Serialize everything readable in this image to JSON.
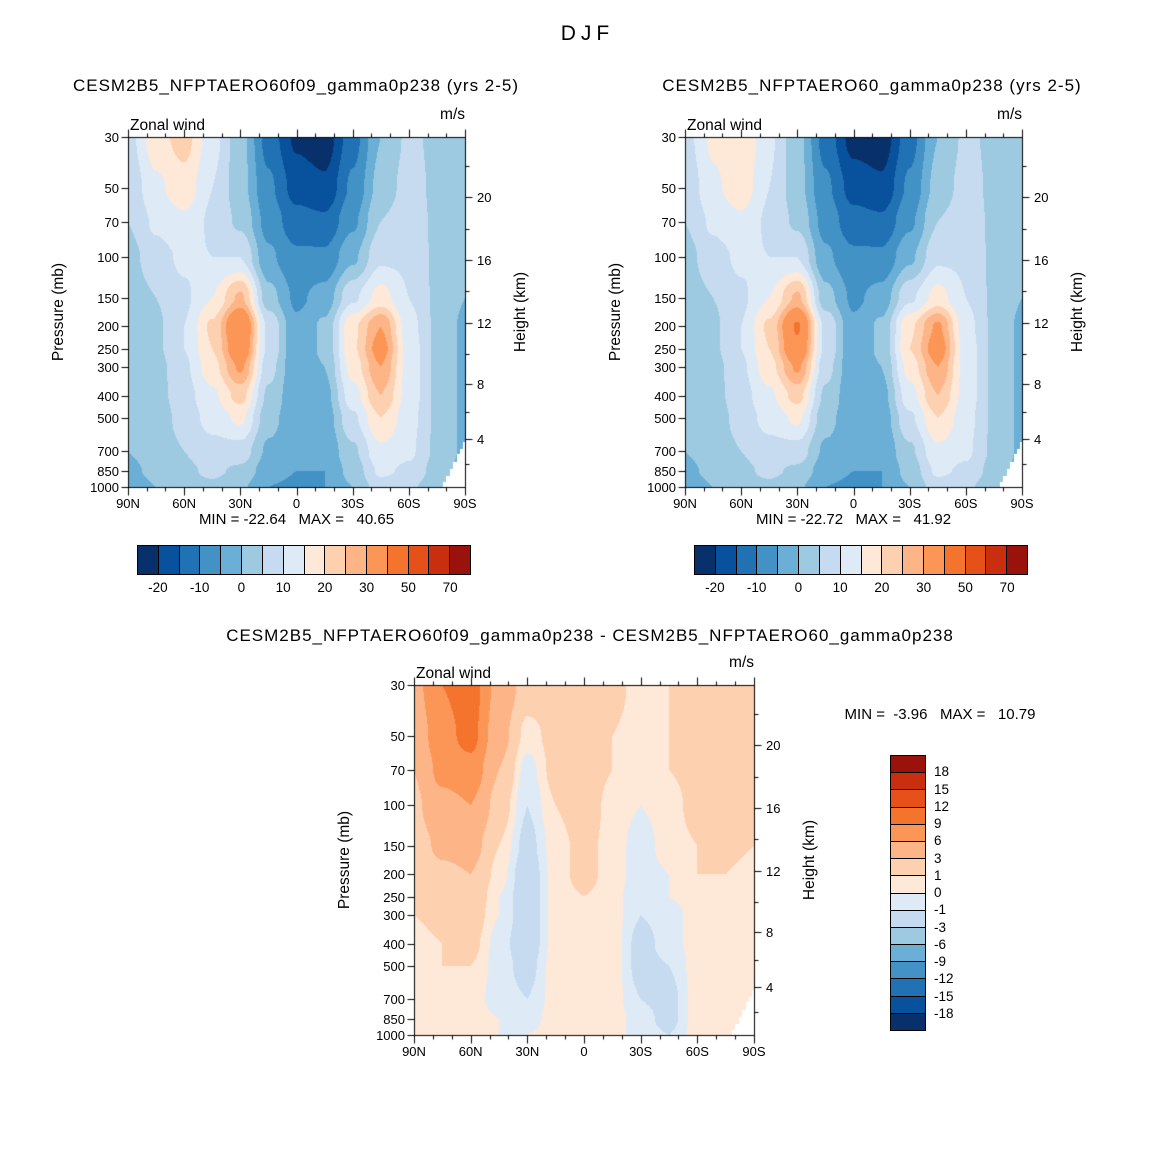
{
  "title": "DJF",
  "panels": [
    {
      "title": "CESM2B5_NFPTAERO60f09_gamma0p238 (yrs 2-5)",
      "field_label": "Zonal wind",
      "units": "m/s",
      "stats": "MIN = -22.64   MAX =   40.65"
    },
    {
      "title": "CESM2B5_NFPTAERO60_gamma0p238 (yrs 2-5)",
      "field_label": "Zonal wind",
      "units": "m/s",
      "stats": "MIN = -22.72   MAX =   41.92"
    },
    {
      "title": "CESM2B5_NFPTAERO60f09_gamma0p238 - CESM2B5_NFPTAERO60_gamma0p238",
      "field_label": "Zonal wind",
      "units": "m/s",
      "stats": "MIN =  -3.96   MAX =   10.79"
    }
  ],
  "axes": {
    "pressure_label": "Pressure (mb)",
    "height_label": "Height (km)",
    "pressure_ticks": [
      "30",
      "50",
      "70",
      "100",
      "150",
      "200",
      "250",
      "300",
      "400",
      "500",
      "700",
      "850",
      "1000"
    ],
    "height_ticks": [
      "20",
      "16",
      "12",
      "8",
      "4"
    ],
    "lat_ticks": [
      "90N",
      "60N",
      "30N",
      "0",
      "30S",
      "60S",
      "90S"
    ],
    "lat_values": [
      90,
      60,
      30,
      0,
      -30,
      -60,
      -90
    ]
  },
  "colorbars": {
    "palette": [
      "#08306b",
      "#08519c",
      "#2171b5",
      "#4292c6",
      "#6baed6",
      "#9ecae1",
      "#c6dbef",
      "#deebf7",
      "#fee8d8",
      "#fdd0b0",
      "#fdb588",
      "#fc9656",
      "#f4742e",
      "#e65019",
      "#c92e0e",
      "#99120b"
    ],
    "main_labels": [
      "-20",
      "-10",
      "0",
      "10",
      "20",
      "30",
      "50",
      "70"
    ],
    "main_label_boundaries": [
      1,
      3,
      5,
      7,
      9,
      11,
      13,
      15
    ],
    "diff_labels": [
      "18",
      "15",
      "12",
      "9",
      "6",
      "3",
      "1",
      "0",
      "-1",
      "-3",
      "-6",
      "-9",
      "-12",
      "-15",
      "-18"
    ]
  },
  "surface_mask": [
    [
      -90,
      640
    ],
    [
      -86,
      730
    ],
    [
      -82,
      860
    ],
    [
      -79,
      960
    ],
    [
      -76,
      2000
    ]
  ],
  "chart_data": [
    {
      "type": "heatmap",
      "title": "CESM2B5_NFPTAERO60f09_gamma0p238 (yrs 2-5)",
      "variable": "Zonal wind",
      "units": "m/s",
      "ylabel": "Pressure (mb)",
      "y2label": "Height (km)",
      "min": -22.64,
      "max": 40.65,
      "levels": [
        -20,
        -15,
        -10,
        -5,
        0,
        5,
        10,
        15,
        20,
        25,
        30,
        40,
        50,
        60,
        70
      ],
      "lats": [
        90,
        75,
        60,
        45,
        30,
        15,
        0,
        -15,
        -30,
        -45,
        -60,
        -75,
        -90
      ],
      "pressures": [
        30,
        50,
        70,
        100,
        150,
        200,
        250,
        300,
        400,
        500,
        700,
        850,
        1000
      ],
      "values": [
        [
          8,
          18,
          22,
          12,
          2,
          -12,
          -21,
          -23,
          -12,
          0,
          6,
          4,
          0
        ],
        [
          6,
          14,
          18,
          10,
          2,
          -9,
          -17,
          -19,
          -9,
          2,
          7,
          4,
          0
        ],
        [
          5,
          11,
          14,
          9,
          4,
          -7,
          -13,
          -14,
          -6,
          5,
          8,
          4,
          0
        ],
        [
          3,
          8,
          11,
          10,
          10,
          -4,
          -9,
          -9,
          -1,
          9,
          9,
          4,
          0
        ],
        [
          2,
          5,
          9,
          15,
          26,
          2,
          -6,
          -3,
          9,
          17,
          10,
          4,
          0
        ],
        [
          1,
          4,
          10,
          21,
          40,
          9,
          -4,
          1,
          19,
          30,
          12,
          4,
          -1
        ],
        [
          1,
          4,
          10,
          20,
          37,
          9,
          -4,
          1,
          19,
          33,
          13,
          4,
          -1
        ],
        [
          1,
          3,
          9,
          18,
          31,
          7,
          -4,
          0,
          17,
          30,
          13,
          4,
          -1
        ],
        [
          0,
          3,
          8,
          14,
          22,
          4,
          -4,
          -2,
          13,
          25,
          13,
          4,
          -1
        ],
        [
          0,
          2,
          7,
          12,
          16,
          2,
          -4,
          -3,
          9,
          20,
          12,
          4,
          -1
        ],
        [
          0,
          2,
          5,
          8,
          8,
          -1,
          -4,
          -4,
          4,
          14,
          11,
          4,
          -1
        ],
        [
          -1,
          1,
          4,
          6,
          4,
          -3,
          -5,
          -5,
          2,
          11,
          9,
          3,
          -2
        ],
        [
          -2,
          0,
          3,
          4,
          1,
          -5,
          -6,
          -5,
          0,
          8,
          6,
          2,
          -3
        ]
      ]
    },
    {
      "type": "heatmap",
      "title": "CESM2B5_NFPTAERO60_gamma0p238 (yrs 2-5)",
      "variable": "Zonal wind",
      "units": "m/s",
      "ylabel": "Pressure (mb)",
      "y2label": "Height (km)",
      "min": -22.72,
      "max": 41.92,
      "levels": [
        -20,
        -15,
        -10,
        -5,
        0,
        5,
        10,
        15,
        20,
        25,
        30,
        40,
        50,
        60,
        70
      ],
      "lats": [
        90,
        75,
        60,
        45,
        30,
        15,
        0,
        -15,
        -30,
        -45,
        -60,
        -75,
        -90
      ],
      "pressures": [
        30,
        50,
        70,
        100,
        150,
        200,
        250,
        300,
        400,
        500,
        700,
        850,
        1000
      ],
      "values": [
        [
          8,
          16,
          20,
          11,
          2,
          -12,
          -22,
          -23,
          -12,
          0,
          6,
          4,
          0
        ],
        [
          6,
          14,
          18,
          10,
          2,
          -9,
          -17,
          -19,
          -9,
          2,
          7,
          4,
          0
        ],
        [
          5,
          11,
          14,
          9,
          4,
          -7,
          -13,
          -14,
          -6,
          5,
          8,
          4,
          0
        ],
        [
          3,
          8,
          11,
          10,
          10,
          -4,
          -9,
          -9,
          -1,
          9,
          9,
          4,
          0
        ],
        [
          2,
          5,
          9,
          15,
          26,
          2,
          -6,
          -3,
          9,
          17,
          10,
          4,
          0
        ],
        [
          1,
          4,
          10,
          21,
          41,
          9,
          -4,
          1,
          19,
          31,
          12,
          4,
          -1
        ],
        [
          1,
          4,
          10,
          20,
          38,
          9,
          -4,
          1,
          20,
          34,
          13,
          4,
          -1
        ],
        [
          1,
          3,
          9,
          18,
          31,
          7,
          -4,
          0,
          17,
          30,
          13,
          4,
          -1
        ],
        [
          0,
          3,
          8,
          14,
          22,
          4,
          -4,
          -2,
          13,
          25,
          13,
          4,
          -1
        ],
        [
          0,
          2,
          7,
          12,
          16,
          2,
          -4,
          -3,
          9,
          20,
          12,
          4,
          -1
        ],
        [
          0,
          2,
          5,
          8,
          8,
          -1,
          -4,
          -4,
          4,
          14,
          11,
          4,
          -1
        ],
        [
          -1,
          1,
          4,
          6,
          4,
          -3,
          -5,
          -5,
          2,
          11,
          9,
          3,
          -2
        ],
        [
          -2,
          0,
          3,
          4,
          1,
          -5,
          -6,
          -5,
          0,
          8,
          6,
          2,
          -3
        ]
      ]
    },
    {
      "type": "heatmap",
      "title": "CESM2B5_NFPTAERO60f09_gamma0p238 - CESM2B5_NFPTAERO60_gamma0p238",
      "variable": "Zonal wind difference",
      "units": "m/s",
      "ylabel": "Pressure (mb)",
      "y2label": "Height (km)",
      "min": -3.96,
      "max": 10.79,
      "levels": [
        -18,
        -15,
        -12,
        -9,
        -6,
        -3,
        -1,
        0,
        1,
        3,
        6,
        9,
        12,
        15,
        18
      ],
      "lats": [
        90,
        75,
        60,
        45,
        30,
        15,
        0,
        -15,
        -30,
        -45,
        -60,
        -75,
        -90
      ],
      "pressures": [
        30,
        50,
        70,
        100,
        150,
        200,
        250,
        300,
        400,
        500,
        700,
        850,
        1000
      ],
      "values": [
        [
          5,
          9,
          10.5,
          5,
          2,
          2,
          2.5,
          1.5,
          0.5,
          1,
          2,
          2.5,
          2
        ],
        [
          4,
          8,
          10,
          4,
          0.5,
          1.5,
          2,
          1,
          0.5,
          1,
          2,
          2,
          1.5
        ],
        [
          3,
          7,
          8,
          3,
          -0.5,
          1.5,
          2,
          1,
          0,
          1,
          1.5,
          2,
          1
        ],
        [
          2.5,
          5,
          6,
          2,
          -1,
          1,
          2,
          0.5,
          0,
          0.5,
          1.5,
          1.5,
          1
        ],
        [
          2,
          3.5,
          4,
          1,
          -1.5,
          0.5,
          1.5,
          0.5,
          -0.5,
          0.5,
          1,
          1.5,
          1
        ],
        [
          1.5,
          2.5,
          3,
          0.5,
          -2,
          0.5,
          1.5,
          0.5,
          -0.5,
          0,
          1,
          1,
          0.5
        ],
        [
          1,
          2,
          2.5,
          0,
          -2,
          0.5,
          1,
          0.5,
          -1,
          0,
          0.5,
          1,
          0.5
        ],
        [
          1,
          1.5,
          2,
          0,
          -2,
          0.5,
          1,
          0.5,
          -1,
          -0.5,
          0.5,
          1,
          0.5
        ],
        [
          0.5,
          1,
          1.5,
          -0.5,
          -2,
          0.5,
          1,
          0.5,
          -1.5,
          -0.5,
          0.5,
          0.5,
          0.5
        ],
        [
          0.5,
          1,
          1,
          -0.5,
          -1.5,
          0.5,
          0.5,
          0.5,
          -1.5,
          -1,
          0.5,
          0.5,
          0.5
        ],
        [
          0.5,
          0.5,
          0.5,
          -0.5,
          -1,
          0.5,
          0.5,
          0.5,
          -1,
          -1.5,
          0.5,
          0.5,
          0.5
        ],
        [
          0.5,
          0.5,
          0.5,
          0,
          -0.5,
          0.5,
          0.5,
          0.5,
          -0.5,
          -1.5,
          0.5,
          0.5,
          0.5
        ],
        [
          0.5,
          0.5,
          0.5,
          0,
          0,
          0.5,
          0.5,
          0.5,
          -0.5,
          -1,
          0.5,
          0.5,
          0.5
        ]
      ]
    }
  ]
}
